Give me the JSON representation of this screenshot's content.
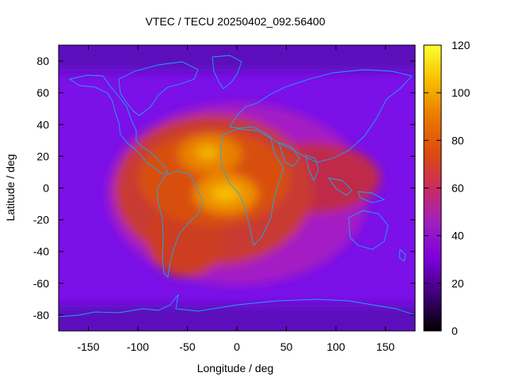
{
  "chart_data": {
    "type": "heatmap",
    "title": "VTEC / TECU 20250402_092.56400",
    "xlabel": "Longitude / deg",
    "ylabel": "Latitude / deg",
    "xlim": [
      -180,
      180
    ],
    "ylim": [
      -90,
      90
    ],
    "xticks": [
      -150,
      -100,
      -50,
      0,
      50,
      100,
      150
    ],
    "yticks": [
      -80,
      -60,
      -40,
      -20,
      0,
      20,
      40,
      60,
      80
    ],
    "colorbar": {
      "range": [
        0,
        120
      ],
      "ticks": [
        0,
        20,
        40,
        60,
        80,
        100,
        120
      ],
      "colormap": [
        "#000000",
        "#4a0090",
        "#8a00d8",
        "#a020c8",
        "#c03060",
        "#d84010",
        "#e87000",
        "#f5b800",
        "#ffff20"
      ]
    },
    "features": [
      {
        "name": "main-anomaly-south-america-africa",
        "lon": -20,
        "lat": 10,
        "peak_value": 100
      },
      {
        "name": "peak-atlantic-equator",
        "lon": -10,
        "lat": -5,
        "peak_value": 105
      },
      {
        "name": "peak-west-africa",
        "lon": -20,
        "lat": 22,
        "peak_value": 98
      },
      {
        "name": "east-extension-indian-ocean",
        "lon": 90,
        "lat": 10,
        "peak_value": 70
      },
      {
        "name": "low-polar-north",
        "lon": 0,
        "lat": 85,
        "peak_value": 15
      },
      {
        "name": "low-polar-south",
        "lon": 0,
        "lat": -85,
        "peak_value": 15
      }
    ],
    "grid": false,
    "overlay": "coastlines"
  }
}
